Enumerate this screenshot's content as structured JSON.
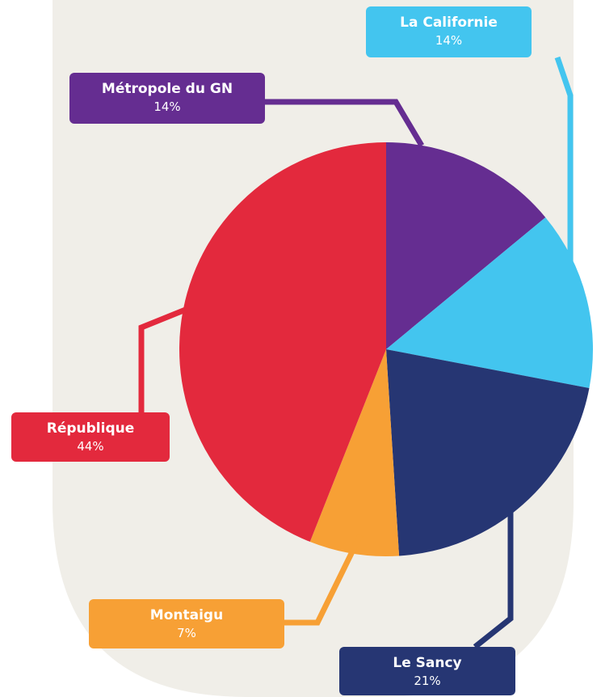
{
  "chart_data": {
    "type": "pie",
    "categories": [
      "Métropole du GN",
      "La Californie",
      "Le Sancy",
      "Montaigu",
      "République"
    ],
    "values": [
      14,
      14,
      21,
      7,
      44
    ],
    "value_labels": [
      "14%",
      "14%",
      "21%",
      "7%",
      "44%"
    ],
    "colors": [
      "#652d91",
      "#43c5ef",
      "#263673",
      "#f7a035",
      "#e3293d"
    ]
  }
}
